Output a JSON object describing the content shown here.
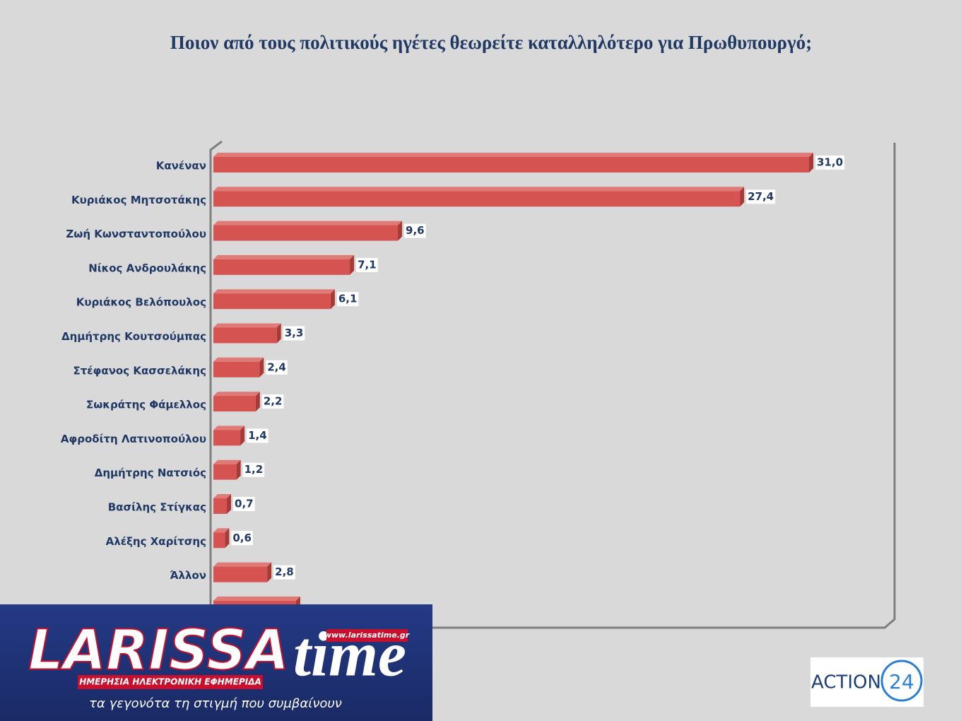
{
  "chart_data": {
    "type": "hbar",
    "title": "Ποιον από τους πολιτικούς ηγέτες θεωρείτε καταλληλότερο για Πρωθυπουργό;",
    "categories": [
      "Κανέναν",
      "Κυριάκος Μητσοτάκης",
      "Ζωή Κωνσταντοπούλου",
      "Νίκος Ανδρουλάκης",
      "Κυριάκος Βελόπουλος",
      "Δημήτρης Κουτσούμπας",
      "Στέφανος Κασσελάκης",
      "Σωκράτης Φάμελλος",
      "Αφροδίτη Λατινοπούλου",
      "Δημήτρης Νατσιός",
      "Βασίλης Στίγκας",
      "Αλέξης Χαρίτσης",
      "Άλλον",
      null
    ],
    "values": [
      31.0,
      27.4,
      9.6,
      7.1,
      6.1,
      3.3,
      2.4,
      2.2,
      1.4,
      1.2,
      0.7,
      0.6,
      2.8,
      4.3
    ],
    "value_labels": [
      "31,0",
      "27,4",
      "9,6",
      "7,1",
      "6,1",
      "3,3",
      "2,4",
      "2,2",
      "1,4",
      "1,2",
      "0,7",
      "0,6",
      "2,8",
      null
    ],
    "color": "#d55350"
  },
  "watermark": {
    "brand": "LARISSA",
    "brand_script": "time",
    "url": "www.larissatime.gr",
    "tagline": "ΗΜΕΡΗΣΙΑ ΗΛΕΚΤΡΟΝΙΚΗ ΕΦΗΜΕΡΙΔΑ",
    "slogan": "τα γεγονότα τη στιγμή που συμβαίνουν",
    "channel": "ACTION",
    "channel_number": "24"
  }
}
